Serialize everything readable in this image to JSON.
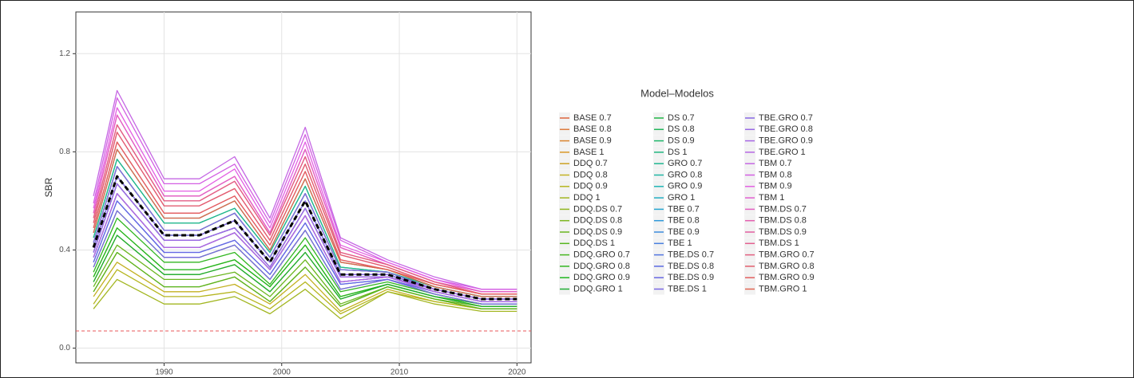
{
  "chart_data": {
    "type": "line",
    "y_label": "SBR",
    "legend_title": "Model–Modelos",
    "legend_position": "right",
    "grid": true,
    "x": [
      1984,
      1986,
      1990,
      1993,
      1996,
      1999,
      2002,
      2005,
      2009,
      2013,
      2017,
      2020
    ],
    "xlim": [
      1982.5,
      2021.2
    ],
    "xticks": [
      1990,
      2000,
      2010,
      2020
    ],
    "ylim": [
      -0.06,
      1.37
    ],
    "yticks": [
      {
        "value": 0,
        "label": "0.0"
      },
      0.4,
      0.8,
      1.2
    ],
    "reference_hline": {
      "value": 0.07,
      "color": "#e8575a"
    },
    "mean_line": {
      "color": "#000000",
      "values": [
        0.41,
        0.7,
        0.46,
        0.46,
        0.52,
        0.35,
        0.6,
        0.3,
        0.3,
        0.24,
        0.2,
        0.2
      ]
    },
    "series": [
      {
        "name": "BASE 0.7",
        "color": "hsl(15,70%,55%)",
        "values": [
          0.43,
          0.74,
          0.48,
          0.48,
          0.55,
          0.37,
          0.63,
          0.32,
          0.31,
          0.24,
          0.2,
          0.2
        ]
      },
      {
        "name": "BASE 0.8",
        "color": "hsl(23,70%,55%)",
        "values": [
          0.41,
          0.7,
          0.46,
          0.46,
          0.52,
          0.35,
          0.6,
          0.3,
          0.3,
          0.24,
          0.2,
          0.2
        ]
      },
      {
        "name": "BASE 0.9",
        "color": "hsl(30,70%,52%)",
        "values": [
          0.39,
          0.67,
          0.44,
          0.44,
          0.49,
          0.33,
          0.57,
          0.29,
          0.29,
          0.24,
          0.2,
          0.2
        ]
      },
      {
        "name": "BASE 1",
        "color": "hsl(38,70%,50%)",
        "values": [
          0.37,
          0.63,
          0.41,
          0.41,
          0.47,
          0.32,
          0.54,
          0.27,
          0.29,
          0.23,
          0.19,
          0.19
        ]
      },
      {
        "name": "DDQ 0.7",
        "color": "hsl(45,70%,47%)",
        "values": [
          0.23,
          0.39,
          0.25,
          0.25,
          0.29,
          0.19,
          0.33,
          0.17,
          0.25,
          0.2,
          0.16,
          0.16
        ]
      },
      {
        "name": "DDQ 0.8",
        "color": "hsl(53,70%,45%)",
        "values": [
          0.21,
          0.35,
          0.23,
          0.23,
          0.26,
          0.18,
          0.3,
          0.15,
          0.24,
          0.19,
          0.16,
          0.16
        ]
      },
      {
        "name": "DDQ 0.9",
        "color": "hsl(60,70%,42%)",
        "values": [
          0.18,
          0.32,
          0.21,
          0.21,
          0.23,
          0.16,
          0.27,
          0.14,
          0.23,
          0.19,
          0.16,
          0.16
        ]
      },
      {
        "name": "DDQ 1",
        "color": "hsl(68,70%,42%)",
        "values": [
          0.16,
          0.28,
          0.18,
          0.18,
          0.21,
          0.14,
          0.24,
          0.12,
          0.23,
          0.18,
          0.15,
          0.15
        ]
      },
      {
        "name": "DDQ.DS 0.7",
        "color": "hsl(75,70%,42%)",
        "values": [
          0.29,
          0.49,
          0.32,
          0.32,
          0.36,
          0.25,
          0.42,
          0.21,
          0.26,
          0.21,
          0.18,
          0.18
        ]
      },
      {
        "name": "DDQ.DS 0.8",
        "color": "hsl(83,70%,42%)",
        "values": [
          0.27,
          0.46,
          0.3,
          0.3,
          0.34,
          0.23,
          0.39,
          0.2,
          0.26,
          0.21,
          0.17,
          0.17
        ]
      },
      {
        "name": "DDQ.DS 0.9",
        "color": "hsl(90,70%,42%)",
        "values": [
          0.25,
          0.42,
          0.28,
          0.28,
          0.31,
          0.21,
          0.36,
          0.18,
          0.25,
          0.2,
          0.17,
          0.17
        ]
      },
      {
        "name": "DDQ.DS 1",
        "color": "hsl(98,70%,42%)",
        "values": [
          0.23,
          0.39,
          0.25,
          0.25,
          0.29,
          0.19,
          0.33,
          0.17,
          0.25,
          0.2,
          0.16,
          0.16
        ]
      },
      {
        "name": "DDQ.GRO 0.7",
        "color": "hsl(105,70%,42%)",
        "values": [
          0.33,
          0.56,
          0.37,
          0.37,
          0.42,
          0.28,
          0.48,
          0.24,
          0.28,
          0.22,
          0.18,
          0.18
        ]
      },
      {
        "name": "DDQ.GRO 0.8",
        "color": "hsl(113,70%,42%)",
        "values": [
          0.31,
          0.53,
          0.35,
          0.35,
          0.39,
          0.26,
          0.45,
          0.23,
          0.27,
          0.22,
          0.18,
          0.18
        ]
      },
      {
        "name": "DDQ.GRO 0.9",
        "color": "hsl(120,70%,42%)",
        "values": [
          0.29,
          0.49,
          0.32,
          0.32,
          0.36,
          0.25,
          0.42,
          0.21,
          0.26,
          0.21,
          0.18,
          0.18
        ]
      },
      {
        "name": "DDQ.GRO 1",
        "color": "hsl(128,70%,40%)",
        "values": [
          0.27,
          0.46,
          0.3,
          0.3,
          0.34,
          0.23,
          0.39,
          0.2,
          0.26,
          0.21,
          0.17,
          0.17
        ]
      },
      {
        "name": "DS 0.7",
        "color": "hsl(135,70%,42%)",
        "values": [
          0.47,
          0.81,
          0.53,
          0.53,
          0.6,
          0.4,
          0.69,
          0.35,
          0.32,
          0.25,
          0.21,
          0.21
        ]
      },
      {
        "name": "DS 0.8",
        "color": "hsl(143,70%,42%)",
        "values": [
          0.45,
          0.77,
          0.51,
          0.51,
          0.57,
          0.39,
          0.66,
          0.33,
          0.31,
          0.25,
          0.21,
          0.21
        ]
      },
      {
        "name": "DS 0.9",
        "color": "hsl(150,70%,42%)",
        "values": [
          0.43,
          0.74,
          0.48,
          0.48,
          0.55,
          0.37,
          0.63,
          0.32,
          0.31,
          0.24,
          0.2,
          0.2
        ]
      },
      {
        "name": "DS 1",
        "color": "hsl(158,70%,42%)",
        "values": [
          0.41,
          0.7,
          0.46,
          0.46,
          0.52,
          0.35,
          0.6,
          0.3,
          0.3,
          0.24,
          0.2,
          0.2
        ]
      },
      {
        "name": "GRO 0.7",
        "color": "hsl(165,70%,42%)",
        "values": [
          0.45,
          0.77,
          0.51,
          0.51,
          0.57,
          0.39,
          0.66,
          0.33,
          0.31,
          0.25,
          0.21,
          0.21
        ]
      },
      {
        "name": "GRO 0.8",
        "color": "hsl(173,70%,42%)",
        "values": [
          0.43,
          0.74,
          0.48,
          0.48,
          0.55,
          0.37,
          0.63,
          0.32,
          0.31,
          0.24,
          0.2,
          0.2
        ]
      },
      {
        "name": "GRO 0.9",
        "color": "hsl(180,70%,42%)",
        "values": [
          0.41,
          0.7,
          0.46,
          0.46,
          0.52,
          0.35,
          0.6,
          0.3,
          0.3,
          0.24,
          0.2,
          0.2
        ]
      },
      {
        "name": "GRO 1",
        "color": "hsl(188,70%,45%)",
        "values": [
          0.39,
          0.67,
          0.44,
          0.44,
          0.49,
          0.33,
          0.57,
          0.29,
          0.29,
          0.24,
          0.2,
          0.2
        ]
      },
      {
        "name": "TBE 0.7",
        "color": "hsl(195,70%,48%)",
        "values": [
          0.41,
          0.7,
          0.46,
          0.46,
          0.52,
          0.35,
          0.6,
          0.3,
          0.3,
          0.24,
          0.2,
          0.2
        ]
      },
      {
        "name": "TBE 0.8",
        "color": "hsl(203,70%,52%)",
        "values": [
          0.39,
          0.67,
          0.44,
          0.44,
          0.49,
          0.33,
          0.57,
          0.29,
          0.29,
          0.24,
          0.2,
          0.2
        ]
      },
      {
        "name": "TBE 0.9",
        "color": "hsl(210,70%,55%)",
        "values": [
          0.37,
          0.63,
          0.41,
          0.41,
          0.47,
          0.32,
          0.54,
          0.27,
          0.29,
          0.23,
          0.19,
          0.19
        ]
      },
      {
        "name": "TBE 1",
        "color": "hsl(218,70%,58%)",
        "values": [
          0.35,
          0.6,
          0.39,
          0.39,
          0.44,
          0.3,
          0.51,
          0.26,
          0.28,
          0.23,
          0.19,
          0.19
        ]
      },
      {
        "name": "TBE.DS 0.7",
        "color": "hsl(225,70%,60%)",
        "values": [
          0.39,
          0.67,
          0.44,
          0.44,
          0.49,
          0.33,
          0.57,
          0.29,
          0.29,
          0.24,
          0.2,
          0.2
        ]
      },
      {
        "name": "TBE.DS 0.8",
        "color": "hsl(233,70%,62%)",
        "values": [
          0.37,
          0.63,
          0.41,
          0.41,
          0.47,
          0.32,
          0.54,
          0.27,
          0.29,
          0.23,
          0.19,
          0.19
        ]
      },
      {
        "name": "TBE.DS 0.9",
        "color": "hsl(240,70%,65%)",
        "values": [
          0.35,
          0.6,
          0.39,
          0.39,
          0.44,
          0.3,
          0.51,
          0.26,
          0.28,
          0.23,
          0.19,
          0.19
        ]
      },
      {
        "name": "TBE.DS 1",
        "color": "hsl(248,70%,65%)",
        "values": [
          0.33,
          0.56,
          0.37,
          0.37,
          0.42,
          0.28,
          0.48,
          0.24,
          0.28,
          0.22,
          0.18,
          0.18
        ]
      },
      {
        "name": "TBE.GRO 0.7",
        "color": "hsl(255,70%,65%)",
        "values": [
          0.43,
          0.74,
          0.48,
          0.48,
          0.55,
          0.37,
          0.63,
          0.32,
          0.31,
          0.24,
          0.2,
          0.2
        ]
      },
      {
        "name": "TBE.GRO 0.8",
        "color": "hsl(263,70%,65%)",
        "values": [
          0.41,
          0.7,
          0.46,
          0.46,
          0.52,
          0.35,
          0.6,
          0.3,
          0.3,
          0.24,
          0.2,
          0.2
        ]
      },
      {
        "name": "TBE.GRO 0.9",
        "color": "hsl(270,70%,65%)",
        "values": [
          0.39,
          0.67,
          0.44,
          0.44,
          0.49,
          0.33,
          0.57,
          0.29,
          0.29,
          0.24,
          0.2,
          0.2
        ]
      },
      {
        "name": "TBE.GRO 1",
        "color": "hsl(278,70%,65%)",
        "values": [
          0.37,
          0.63,
          0.41,
          0.41,
          0.47,
          0.32,
          0.54,
          0.27,
          0.29,
          0.23,
          0.19,
          0.19
        ]
      },
      {
        "name": "TBM 0.7",
        "color": "hsl(285,70%,65%)",
        "values": [
          0.62,
          1.05,
          0.69,
          0.69,
          0.78,
          0.53,
          0.9,
          0.45,
          0.36,
          0.29,
          0.24,
          0.24
        ]
      },
      {
        "name": "TBM 0.8",
        "color": "hsl(293,70%,63%)",
        "values": [
          0.59,
          1.02,
          0.67,
          0.67,
          0.75,
          0.51,
          0.87,
          0.44,
          0.35,
          0.28,
          0.24,
          0.24
        ]
      },
      {
        "name": "TBM 0.9",
        "color": "hsl(300,70%,63%)",
        "values": [
          0.57,
          0.98,
          0.64,
          0.64,
          0.73,
          0.49,
          0.84,
          0.42,
          0.35,
          0.28,
          0.23,
          0.23
        ]
      },
      {
        "name": "TBM 1",
        "color": "hsl(308,70%,63%)",
        "values": [
          0.55,
          0.95,
          0.62,
          0.62,
          0.7,
          0.47,
          0.81,
          0.41,
          0.34,
          0.27,
          0.23,
          0.23
        ]
      },
      {
        "name": "TBM.DS 0.7",
        "color": "hsl(315,70%,63%)",
        "values": [
          0.55,
          0.95,
          0.62,
          0.62,
          0.7,
          0.47,
          0.81,
          0.41,
          0.34,
          0.27,
          0.23,
          0.23
        ]
      },
      {
        "name": "TBM.DS 0.8",
        "color": "hsl(323,70%,63%)",
        "values": [
          0.53,
          0.91,
          0.6,
          0.6,
          0.68,
          0.46,
          0.78,
          0.39,
          0.34,
          0.27,
          0.22,
          0.22
        ]
      },
      {
        "name": "TBM.DS 0.9",
        "color": "hsl(330,70%,63%)",
        "values": [
          0.51,
          0.88,
          0.58,
          0.58,
          0.65,
          0.44,
          0.75,
          0.38,
          0.33,
          0.26,
          0.22,
          0.22
        ]
      },
      {
        "name": "TBM.DS 1",
        "color": "hsl(338,70%,63%)",
        "values": [
          0.49,
          0.84,
          0.55,
          0.55,
          0.62,
          0.42,
          0.72,
          0.36,
          0.32,
          0.26,
          0.22,
          0.22
        ]
      },
      {
        "name": "TBM.GRO 0.7",
        "color": "hsl(345,70%,63%)",
        "values": [
          0.53,
          0.91,
          0.6,
          0.6,
          0.68,
          0.46,
          0.78,
          0.39,
          0.34,
          0.27,
          0.22,
          0.22
        ]
      },
      {
        "name": "TBM.GRO 0.8",
        "color": "hsl(353,70%,63%)",
        "values": [
          0.51,
          0.88,
          0.58,
          0.58,
          0.65,
          0.44,
          0.75,
          0.38,
          0.33,
          0.26,
          0.22,
          0.22
        ]
      },
      {
        "name": "TBM.GRO 0.9",
        "color": "hsl(0,70%,63%)",
        "values": [
          0.49,
          0.84,
          0.55,
          0.55,
          0.62,
          0.42,
          0.72,
          0.36,
          0.32,
          0.26,
          0.22,
          0.22
        ]
      },
      {
        "name": "TBM.GRO 1",
        "color": "hsl(8,70%,60%)",
        "values": [
          0.47,
          0.81,
          0.53,
          0.53,
          0.6,
          0.4,
          0.69,
          0.35,
          0.32,
          0.25,
          0.21,
          0.21
        ]
      }
    ]
  }
}
